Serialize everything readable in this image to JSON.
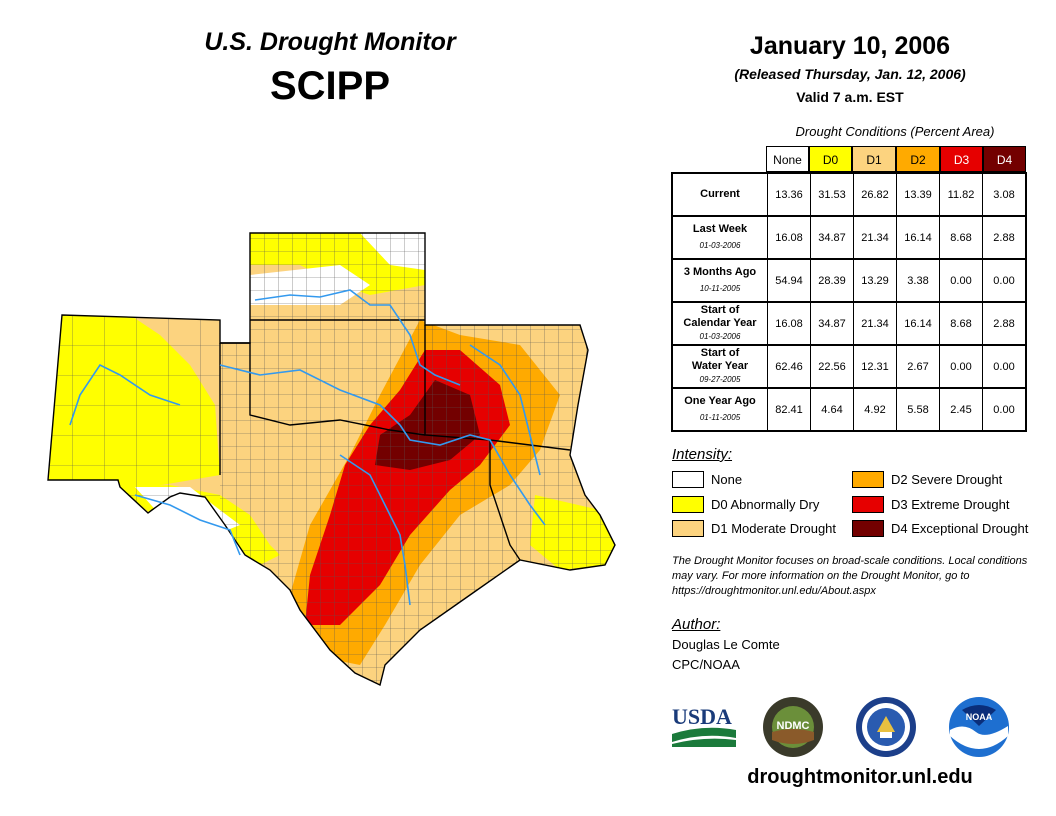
{
  "header": {
    "monitor_title": "U.S. Drought Monitor",
    "region": "SCIPP",
    "date": "January 10, 2006",
    "released": "(Released Thursday, Jan. 12, 2006)",
    "valid": "Valid 7 a.m. EST"
  },
  "table": {
    "caption": "Drought Conditions (Percent Area)",
    "columns": [
      {
        "label": "None",
        "color": "#ffffff",
        "text_color": "#000000"
      },
      {
        "label": "D0",
        "color": "#ffff00",
        "text_color": "#000000"
      },
      {
        "label": "D1",
        "color": "#fcd37f",
        "text_color": "#000000"
      },
      {
        "label": "D2",
        "color": "#ffaa00",
        "text_color": "#000000"
      },
      {
        "label": "D3",
        "color": "#e60000",
        "text_color": "#ffffff"
      },
      {
        "label": "D4",
        "color": "#730000",
        "text_color": "#ffffff"
      }
    ],
    "rows": [
      {
        "label1": "Current",
        "label2": "",
        "date": "",
        "values": [
          "13.36",
          "31.53",
          "26.82",
          "13.39",
          "11.82",
          "3.08"
        ]
      },
      {
        "label1": "Last Week",
        "label2": "",
        "date": "01-03-2006",
        "values": [
          "16.08",
          "34.87",
          "21.34",
          "16.14",
          "8.68",
          "2.88"
        ]
      },
      {
        "label1": "3 Months Ago",
        "label2": "",
        "date": "10-11-2005",
        "values": [
          "54.94",
          "28.39",
          "13.29",
          "3.38",
          "0.00",
          "0.00"
        ]
      },
      {
        "label1": "Start of",
        "label2": "Calendar Year",
        "date": "01-03-2006",
        "values": [
          "16.08",
          "34.87",
          "21.34",
          "16.14",
          "8.68",
          "2.88"
        ]
      },
      {
        "label1": "Start of",
        "label2": "Water Year",
        "date": "09-27-2005",
        "values": [
          "62.46",
          "22.56",
          "12.31",
          "2.67",
          "0.00",
          "0.00"
        ]
      },
      {
        "label1": "One Year Ago",
        "label2": "",
        "date": "01-11-2005",
        "values": [
          "82.41",
          "4.64",
          "4.92",
          "5.58",
          "2.45",
          "0.00"
        ]
      }
    ]
  },
  "legend": {
    "title": "Intensity:",
    "items": [
      {
        "label": "None",
        "color": "#ffffff"
      },
      {
        "label": "D0 Abnormally Dry",
        "color": "#ffff00"
      },
      {
        "label": "D1 Moderate Drought",
        "color": "#fcd37f"
      },
      {
        "label": "D2 Severe Drought",
        "color": "#ffaa00"
      },
      {
        "label": "D3 Extreme Drought",
        "color": "#e60000"
      },
      {
        "label": "D4 Exceptional Drought",
        "color": "#730000"
      }
    ]
  },
  "note": "The Drought Monitor focuses on broad-scale conditions. Local conditions may vary. For more information on the Drought Monitor, go to https://droughtmonitor.unl.edu/About.aspx",
  "author": {
    "title": "Author:",
    "name": "Douglas Le Comte",
    "org": "CPC/NOAA"
  },
  "logos": {
    "usda": "USDA",
    "ndmc": "NDMC",
    "noaa": "NOAA"
  },
  "url": "droughtmonitor.unl.edu",
  "colors": {
    "river": "#3399ee",
    "county_line": "#555555",
    "state_line": "#000000"
  }
}
